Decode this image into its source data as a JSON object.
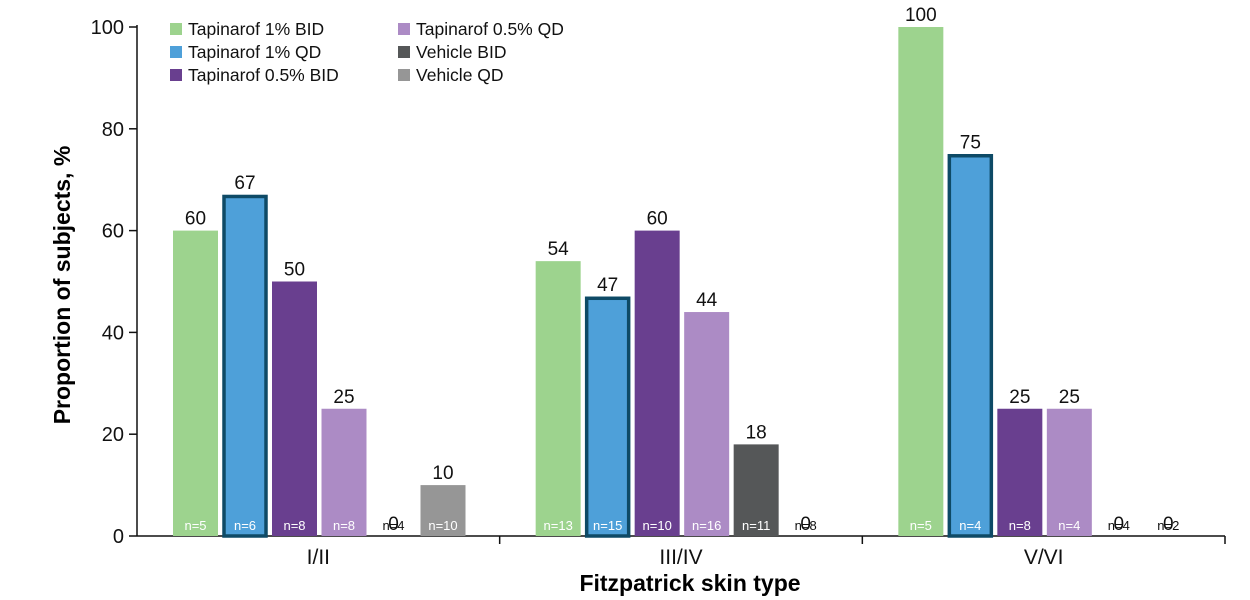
{
  "chart_data": {
    "type": "bar",
    "xlabel": "Fitzpatrick skin type",
    "ylabel": "Proportion of subjects, %",
    "ylim": [
      0,
      100
    ],
    "yticks": [
      "0",
      "20",
      "40",
      "60",
      "80",
      "100"
    ],
    "grid": false,
    "legend_position": "top-left",
    "categories": [
      "I/II",
      "III/IV",
      "V/VI"
    ],
    "series": [
      {
        "name": "Tapinarof 1% BID",
        "color": "#9dd38e",
        "outlined": false,
        "values": [
          60,
          54,
          100
        ],
        "value_labels": [
          "60",
          "54",
          "100"
        ],
        "n_labels": [
          "n=5",
          "n=13",
          "n=5"
        ]
      },
      {
        "name": "Tapinarof 1% QD",
        "color": "#4ea0d9",
        "outlined": true,
        "values": [
          67,
          47,
          75
        ],
        "value_labels": [
          "67",
          "47",
          "75"
        ],
        "n_labels": [
          "n=6",
          "n=15",
          "n=4"
        ]
      },
      {
        "name": "Tapinarof 0.5% BID",
        "color": "#693f8f",
        "outlined": false,
        "values": [
          50,
          60,
          25
        ],
        "value_labels": [
          "50",
          "60",
          "25"
        ],
        "n_labels": [
          "n=8",
          "n=10",
          "n=8"
        ]
      },
      {
        "name": "Tapinarof 0.5% QD",
        "color": "#ac8bc5",
        "outlined": false,
        "values": [
          25,
          44,
          25
        ],
        "value_labels": [
          "25",
          "44",
          "25"
        ],
        "n_labels": [
          "n=8",
          "n=16",
          "n=4"
        ]
      },
      {
        "name": "Vehicle BID",
        "color": "#555758",
        "outlined": false,
        "values": [
          0,
          18,
          0
        ],
        "value_labels": [
          "0",
          "18",
          "0"
        ],
        "n_labels": [
          "n=4",
          "n=11",
          "n=4"
        ]
      },
      {
        "name": "Vehicle QD",
        "color": "#969696",
        "outlined": false,
        "values": [
          10,
          0,
          0
        ],
        "value_labels": [
          "10",
          "0",
          "0"
        ],
        "n_labels": [
          "n=10",
          "n=8",
          "n=2"
        ]
      }
    ],
    "outline_color": "#0e4a66"
  }
}
